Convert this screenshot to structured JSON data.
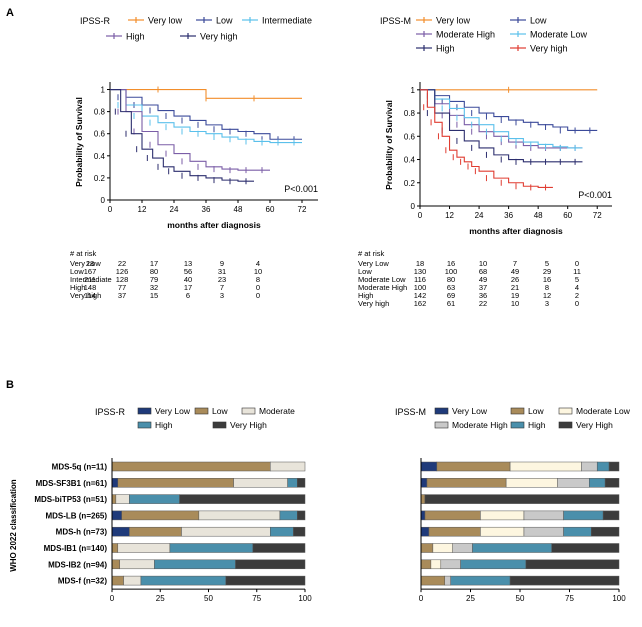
{
  "panel_labels": {
    "a": "A",
    "b": "B"
  },
  "chart_data": [
    {
      "type": "line",
      "kind": "km",
      "legend_title": "IPSS-R",
      "xlabel": "months after diagnosis",
      "ylabel": "Probability of Survival",
      "xlim": [
        0,
        78
      ],
      "ylim": [
        0,
        1.05
      ],
      "xticks": [
        0,
        12,
        24,
        36,
        48,
        60,
        72
      ],
      "yticks": [
        0,
        0.2,
        0.4,
        0.6,
        0.8,
        1
      ],
      "pvalue": "P<0.001",
      "series": [
        {
          "name": "Very low",
          "color": "#f28e2b",
          "x": [
            0,
            36,
            36,
            72
          ],
          "y": [
            1,
            1,
            0.92,
            0.92
          ]
        },
        {
          "name": "Low",
          "color": "#3b4a9a",
          "x": [
            0,
            6,
            12,
            18,
            24,
            30,
            36,
            42,
            48,
            54,
            60,
            66,
            72
          ],
          "y": [
            1,
            0.93,
            0.86,
            0.81,
            0.76,
            0.72,
            0.68,
            0.64,
            0.62,
            0.6,
            0.55,
            0.55,
            0.55
          ]
        },
        {
          "name": "Intermediate",
          "color": "#5bc0eb",
          "x": [
            0,
            6,
            12,
            18,
            24,
            30,
            36,
            42,
            48,
            54,
            60,
            66,
            72
          ],
          "y": [
            1,
            0.86,
            0.76,
            0.7,
            0.66,
            0.62,
            0.6,
            0.57,
            0.55,
            0.53,
            0.52,
            0.52,
            0.52
          ]
        },
        {
          "name": "High",
          "color": "#7b5ea7",
          "x": [
            0,
            6,
            12,
            18,
            24,
            30,
            36,
            42,
            48,
            54,
            60
          ],
          "y": [
            1,
            0.8,
            0.62,
            0.5,
            0.42,
            0.35,
            0.3,
            0.28,
            0.27,
            0.27,
            0.27
          ]
        },
        {
          "name": "Very high",
          "color": "#2c2e6e",
          "x": [
            0,
            4,
            8,
            12,
            16,
            20,
            24,
            30,
            36,
            42,
            48,
            54
          ],
          "y": [
            1,
            0.8,
            0.6,
            0.46,
            0.38,
            0.3,
            0.26,
            0.22,
            0.2,
            0.18,
            0.17,
            0.17
          ]
        }
      ],
      "risk_header": "# at risk",
      "risk_rows": [
        {
          "label": "Very Low",
          "values": [
            "28",
            "22",
            "17",
            "13",
            "9",
            "4"
          ]
        },
        {
          "label": "Low",
          "values": [
            "167",
            "126",
            "80",
            "56",
            "31",
            "10"
          ]
        },
        {
          "label": "Intermediate",
          "values": [
            "211",
            "128",
            "79",
            "40",
            "23",
            "8"
          ]
        },
        {
          "label": "High",
          "values": [
            "148",
            "77",
            "32",
            "17",
            "7",
            "0"
          ]
        },
        {
          "label": "Very high",
          "values": [
            "114",
            "37",
            "15",
            "6",
            "3",
            "0"
          ]
        }
      ]
    },
    {
      "type": "line",
      "kind": "km",
      "legend_title": "IPSS-M",
      "xlabel": "months after diagnosis",
      "ylabel": "Probability of Survival",
      "xlim": [
        0,
        78
      ],
      "ylim": [
        0,
        1.05
      ],
      "xticks": [
        0,
        12,
        24,
        36,
        48,
        60,
        72
      ],
      "yticks": [
        0,
        0.2,
        0.4,
        0.6,
        0.8,
        1
      ],
      "pvalue": "P<0.001",
      "series": [
        {
          "name": "Very low",
          "color": "#f28e2b",
          "x": [
            0,
            72
          ],
          "y": [
            1,
            1
          ]
        },
        {
          "name": "Low",
          "color": "#3b4a9a",
          "x": [
            0,
            6,
            12,
            18,
            24,
            30,
            36,
            42,
            48,
            54,
            60,
            66,
            72
          ],
          "y": [
            1,
            0.95,
            0.9,
            0.85,
            0.8,
            0.77,
            0.74,
            0.72,
            0.7,
            0.68,
            0.65,
            0.65,
            0.65
          ]
        },
        {
          "name": "Moderate High",
          "color": "#7b5ea7",
          "x": [
            0,
            6,
            12,
            18,
            24,
            30,
            36,
            42,
            48,
            54,
            60,
            66
          ],
          "y": [
            1,
            0.88,
            0.78,
            0.7,
            0.64,
            0.6,
            0.55,
            0.52,
            0.5,
            0.5,
            0.5,
            0.5
          ]
        },
        {
          "name": "Moderate Low",
          "color": "#5bc0eb",
          "x": [
            0,
            6,
            12,
            18,
            24,
            30,
            36,
            42,
            48,
            54,
            60,
            66
          ],
          "y": [
            1,
            0.92,
            0.84,
            0.76,
            0.7,
            0.64,
            0.58,
            0.55,
            0.53,
            0.51,
            0.5,
            0.5
          ]
        },
        {
          "name": "High",
          "color": "#2c2e6e",
          "x": [
            0,
            6,
            12,
            18,
            24,
            30,
            36,
            42,
            48,
            54,
            60,
            66
          ],
          "y": [
            1,
            0.8,
            0.65,
            0.56,
            0.5,
            0.44,
            0.4,
            0.38,
            0.38,
            0.38,
            0.38,
            0.38
          ]
        },
        {
          "name": "Very high",
          "color": "#e03c31",
          "x": [
            0,
            3,
            6,
            9,
            12,
            15,
            18,
            21,
            24,
            30,
            36,
            42,
            48,
            54
          ],
          "y": [
            1,
            0.85,
            0.72,
            0.6,
            0.48,
            0.42,
            0.38,
            0.34,
            0.3,
            0.24,
            0.2,
            0.17,
            0.16,
            0.16
          ]
        }
      ],
      "risk_header": "# at risk",
      "risk_rows": [
        {
          "label": "Very Low",
          "values": [
            "18",
            "16",
            "10",
            "7",
            "5",
            "0"
          ]
        },
        {
          "label": "Low",
          "values": [
            "130",
            "100",
            "68",
            "49",
            "29",
            "11"
          ]
        },
        {
          "label": "Moderate Low",
          "values": [
            "116",
            "80",
            "49",
            "26",
            "16",
            "5"
          ]
        },
        {
          "label": "Moderate High",
          "values": [
            "100",
            "63",
            "37",
            "21",
            "8",
            "4"
          ]
        },
        {
          "label": "High",
          "values": [
            "142",
            "69",
            "36",
            "19",
            "12",
            "2"
          ]
        },
        {
          "label": "Very high",
          "values": [
            "162",
            "61",
            "22",
            "10",
            "3",
            "0"
          ]
        }
      ]
    },
    {
      "type": "bar",
      "stacked": true,
      "orientation": "horizontal",
      "legend_title": "IPSS-R",
      "ylabel": "WHO 2022 classification",
      "xlim": [
        0,
        100
      ],
      "xticks": [
        0,
        25,
        50,
        75,
        100
      ],
      "categories": [
        "MDS-5q (n=11)",
        "MDS-SF3B1 (n=61)",
        "MDS-biTP53 (n=51)",
        "MDS-LB (n=265)",
        "MDS-h (n=73)",
        "MDS-IB1 (n=140)",
        "MDS-IB2 (n=94)",
        "MDS-f (n=32)"
      ],
      "series": [
        {
          "name": "Very Low",
          "color": "#1f3a7a",
          "values": [
            0,
            3,
            0,
            5,
            9,
            0,
            0,
            0
          ]
        },
        {
          "name": "Low",
          "color": "#a98b5a",
          "values": [
            82,
            60,
            2,
            40,
            27,
            3,
            4,
            6
          ]
        },
        {
          "name": "Moderate",
          "color": "#e8e4da",
          "values": [
            18,
            28,
            7,
            42,
            46,
            27,
            18,
            9
          ]
        },
        {
          "name": "High",
          "color": "#4a8fab",
          "values": [
            0,
            5,
            26,
            9,
            12,
            43,
            42,
            44
          ]
        },
        {
          "name": "Very High",
          "color": "#3c3c3c",
          "values": [
            0,
            4,
            65,
            4,
            6,
            27,
            36,
            41
          ]
        }
      ]
    },
    {
      "type": "bar",
      "stacked": true,
      "orientation": "horizontal",
      "legend_title": "IPSS-M",
      "xlim": [
        0,
        100
      ],
      "xticks": [
        0,
        25,
        50,
        75,
        100
      ],
      "categories": [
        "MDS-5q (n=11)",
        "MDS-SF3B1 (n=61)",
        "MDS-biTP53 (n=51)",
        "MDS-LB (n=265)",
        "MDS-h (n=73)",
        "MDS-IB1 (n=140)",
        "MDS-IB2 (n=94)",
        "MDS-f (n=32)"
      ],
      "series": [
        {
          "name": "Very Low",
          "color": "#1f3a7a",
          "values": [
            8,
            3,
            0,
            2,
            4,
            0,
            0,
            0
          ]
        },
        {
          "name": "Low",
          "color": "#a98b5a",
          "values": [
            37,
            40,
            2,
            28,
            26,
            6,
            5,
            12
          ]
        },
        {
          "name": "Moderate Low",
          "color": "#fdf6e0",
          "values": [
            36,
            26,
            0,
            22,
            22,
            10,
            5,
            0
          ]
        },
        {
          "name": "Moderate High",
          "color": "#c9c9c9",
          "values": [
            8,
            16,
            0,
            20,
            20,
            10,
            10,
            3
          ]
        },
        {
          "name": "High",
          "color": "#4a8fab",
          "values": [
            6,
            8,
            0,
            20,
            14,
            40,
            33,
            30
          ]
        },
        {
          "name": "Very High",
          "color": "#3c3c3c",
          "values": [
            5,
            7,
            98,
            8,
            14,
            34,
            47,
            55
          ]
        }
      ]
    }
  ]
}
